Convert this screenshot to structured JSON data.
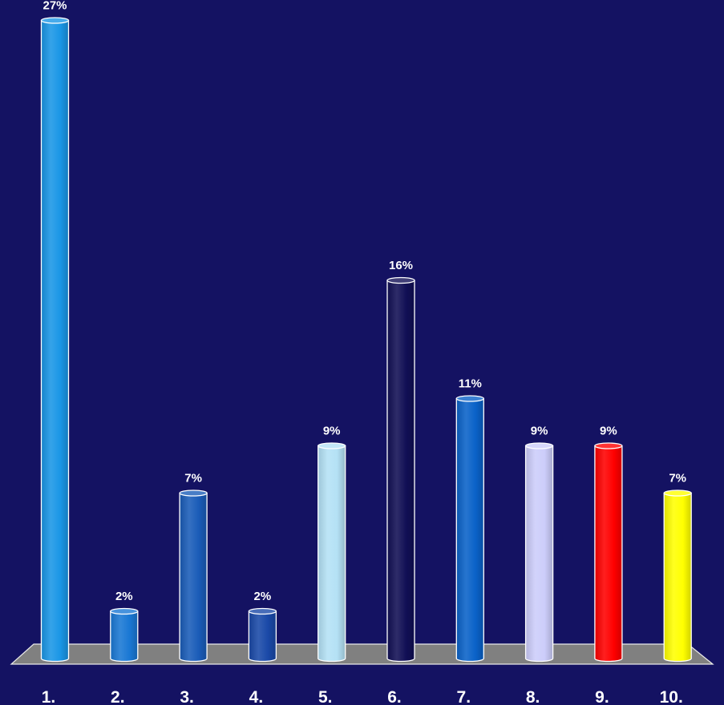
{
  "chart_data": {
    "type": "bar",
    "title": "",
    "xlabel": "",
    "ylabel": "",
    "categories": [
      "1.",
      "2.",
      "3.",
      "4.",
      "5.",
      "6.",
      "7.",
      "8.",
      "9.",
      "10."
    ],
    "values": [
      27,
      2,
      7,
      2,
      9,
      16,
      11,
      9,
      9,
      7
    ],
    "value_labels": [
      "27%",
      "2%",
      "7%",
      "2%",
      "9%",
      "16%",
      "11%",
      "9%",
      "9%",
      "7%"
    ],
    "value_unit": "%",
    "bar_colors": [
      "#1a96e6",
      "#1a78d4",
      "#1a5cb8",
      "#1a49a8",
      "#b4e1f5",
      "#110f55",
      "#0a62c8",
      "#cccdfa",
      "#ff0000",
      "#ffff00"
    ],
    "floor_color": "#808080",
    "background_color": "#141262",
    "grid": false,
    "legend": "none"
  }
}
